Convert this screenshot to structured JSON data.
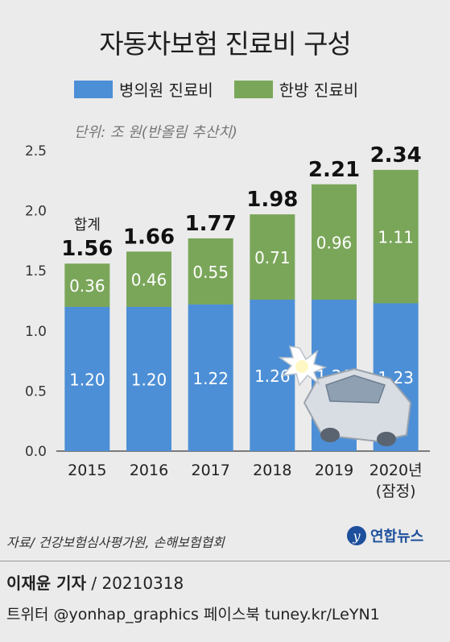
{
  "title": "자동차보험 진료비 구성",
  "legend": [
    "병의원 진료비",
    "한방 진료비"
  ],
  "unit_note": "단위: 조 원(반올림 추산치)",
  "total_label": "합계",
  "source": "자료/ 건강보험심사평가원, 손해보험협회",
  "logo_text": "연합뉴스",
  "reporter": {
    "name": "이재윤 기자",
    "date": "20210318"
  },
  "social": "트위터 @yonhap_graphics  페이스북 tuney.kr/LeYN1",
  "colors": {
    "hospital": "#4d8fd6",
    "oriental": "#7aa65a",
    "background": "#ebebeb"
  },
  "chart_data": {
    "type": "bar",
    "stacked": true,
    "categories": [
      "2015",
      "2016",
      "2017",
      "2018",
      "2019",
      "2020년"
    ],
    "category_sublabels": [
      "",
      "",
      "",
      "",
      "",
      "(잠정)"
    ],
    "series": [
      {
        "name": "병의원 진료비",
        "values": [
          1.2,
          1.2,
          1.22,
          1.26,
          1.26,
          1.23
        ],
        "labels": [
          "1.20",
          "1.20",
          "1.22",
          "1.26",
          "1.26",
          "1.23"
        ]
      },
      {
        "name": "한방 진료비",
        "values": [
          0.36,
          0.46,
          0.55,
          0.71,
          0.96,
          1.11
        ],
        "labels": [
          "0.36",
          "0.46",
          "0.55",
          "0.71",
          "0.96",
          "1.11"
        ]
      }
    ],
    "totals": [
      "1.56",
      "1.66",
      "1.77",
      "1.98",
      "2.21",
      "2.34"
    ],
    "ylim": [
      0,
      2.5
    ],
    "yticks": [
      "0.0",
      "0.5",
      "1.0",
      "1.5",
      "2.0",
      "2.5"
    ],
    "grid": false,
    "legend_position": "top"
  }
}
